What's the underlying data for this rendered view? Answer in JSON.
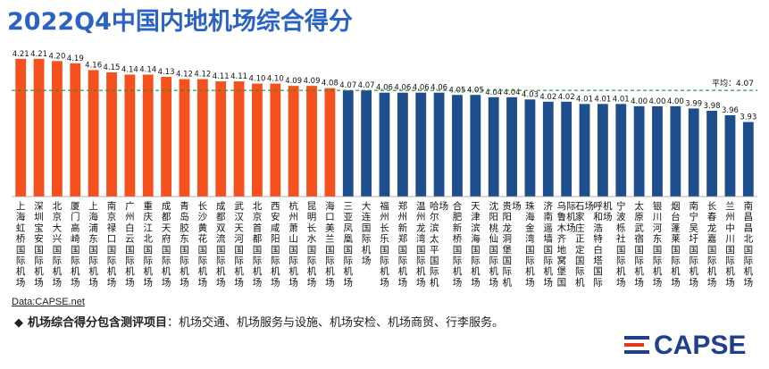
{
  "title": "2022Q4中国内地机场综合得分",
  "source": "Data:CAPSE.net",
  "note": {
    "bullet": "◆",
    "bold_text": "机场综合得分包含测评项目",
    "text": "：机场交通、机场服务与设施、机场安检、机场商贸、行李服务。"
  },
  "logo": {
    "text": "CAPSE"
  },
  "colors": {
    "orange": "#f4511e",
    "blue": "#1f4e8c",
    "avg_line": "#2e8b3a",
    "title": "#2b63c4"
  },
  "chart_data": {
    "type": "bar",
    "ylim": [
      3.6,
      4.32
    ],
    "average": {
      "label": "平均：4.07",
      "value": 4.07
    },
    "categories": [
      "上海虹桥国际机场",
      "深圳宝安国际机场",
      "北京大兴国际机场",
      "厦门高崎国际机场",
      "上海浦东国际机场",
      "南京禄口国际机场",
      "广州白云国际机场",
      "重庆江北国际机场",
      "成都天府国际机场",
      "青岛胶东国际机场",
      "长沙黄花国际机场",
      "成都双流国际机场",
      "武汉天河国际机场",
      "北京首都国际机场",
      "西安咸阳国际机场",
      "杭州萧山国际机场",
      "昆明长水国际机场",
      "海口美兰国际机场",
      "三亚凤凰国际机场",
      "大连国际机场",
      "福州长乐国际机场",
      "郑州新郑国际机场",
      "温州龙湾国际机场",
      "哈尔滨太平国际机场",
      "合肥新桥国际机场",
      "天津滨海国际机场",
      "沈阳桃仙国际机场",
      "贵阳龙洞堡国际机场",
      "珠海金湾国际机场",
      "济南遥墙国际机场",
      "乌鲁木齐地窝堡国际机场",
      "石家庄正定国际机场",
      "呼和浩特白塔国际机场",
      "宁波栎社国际机场",
      "太原武宿国际机场",
      "银川河东国际机场",
      "烟台蓬莱国际机场",
      "南宁吴圩国际机场",
      "长春龙嘉国际机场",
      "兰州中川国际机场",
      "南昌昌北国际机场"
    ],
    "values": [
      4.21,
      4.21,
      4.2,
      4.19,
      4.16,
      4.15,
      4.14,
      4.14,
      4.13,
      4.12,
      4.12,
      4.11,
      4.11,
      4.1,
      4.1,
      4.09,
      4.09,
      4.08,
      4.07,
      4.07,
      4.06,
      4.06,
      4.06,
      4.06,
      4.05,
      4.05,
      4.04,
      4.04,
      4.03,
      4.02,
      4.02,
      4.01,
      4.01,
      4.01,
      4.0,
      4.0,
      4.0,
      3.99,
      3.98,
      3.96,
      3.93
    ],
    "value_labels": [
      "4.21",
      "4.21",
      "4.20",
      "4.19",
      "4.16",
      "4.15",
      "4.14",
      "4.14",
      "4.13",
      "4.12",
      "4.12",
      "4.11",
      "4.11",
      "4.10",
      "4.10",
      "4.09",
      "4.09",
      "4.08",
      "4.07",
      "4.07",
      "4.06",
      "4.06",
      "4.06",
      "4.06",
      "4.05",
      "4.05",
      "4.04",
      "4.04",
      "4.03",
      "4.02",
      "4.02",
      "4.01",
      "4.01",
      "4.01",
      "4.00",
      "4.00",
      "4.00",
      "3.99",
      "3.98",
      "3.96",
      "3.93"
    ],
    "series_colors_by_index": {
      "orange_count": 18
    },
    "grid": false,
    "legend": "none"
  }
}
